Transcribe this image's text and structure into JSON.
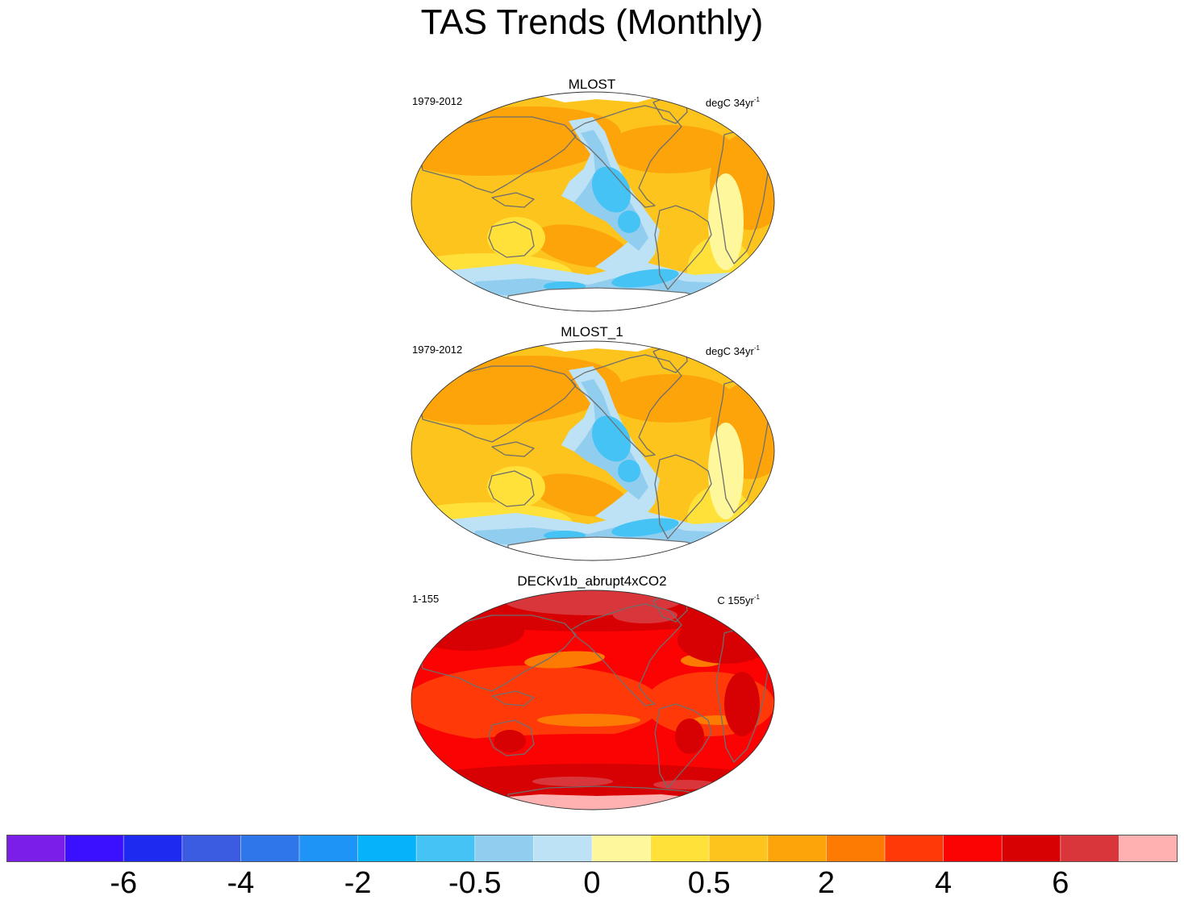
{
  "chart_data": {
    "type": "heatmap",
    "title": "TAS Trends (Monthly)",
    "projection": "robinson",
    "panels": [
      {
        "title": "MLOST",
        "period": "1979-2012",
        "units": "degC 34yr",
        "units_sup": "-1",
        "pattern": "obs"
      },
      {
        "title": "MLOST_1",
        "period": "1979-2012",
        "units": "degC 34yr",
        "units_sup": "-1",
        "pattern": "obs"
      },
      {
        "title": "DECKv1b_abrupt4xCO2",
        "period": "1-155",
        "units": "C 155yr",
        "units_sup": "-1",
        "pattern": "model"
      }
    ],
    "colorbar": {
      "colors": [
        "#7b1fe8",
        "#3b0fff",
        "#1f2af0",
        "#3b5be0",
        "#2e76ea",
        "#1e94f6",
        "#06b3fa",
        "#45c3f5",
        "#91cdef",
        "#bde2f5",
        "#fff79b",
        "#ffe13a",
        "#fcc41c",
        "#fca40a",
        "#fd7a03",
        "#ff3a08",
        "#fb0302",
        "#d70002",
        "#d8363a",
        "#ffb0b0"
      ],
      "tick_labels": [
        "-6",
        "-4",
        "-2",
        "-0.5",
        "0",
        "0.5",
        "2",
        "4",
        "6"
      ],
      "tick_boundaries": [
        2,
        4,
        6,
        8,
        10,
        12,
        14,
        16,
        18
      ]
    }
  }
}
